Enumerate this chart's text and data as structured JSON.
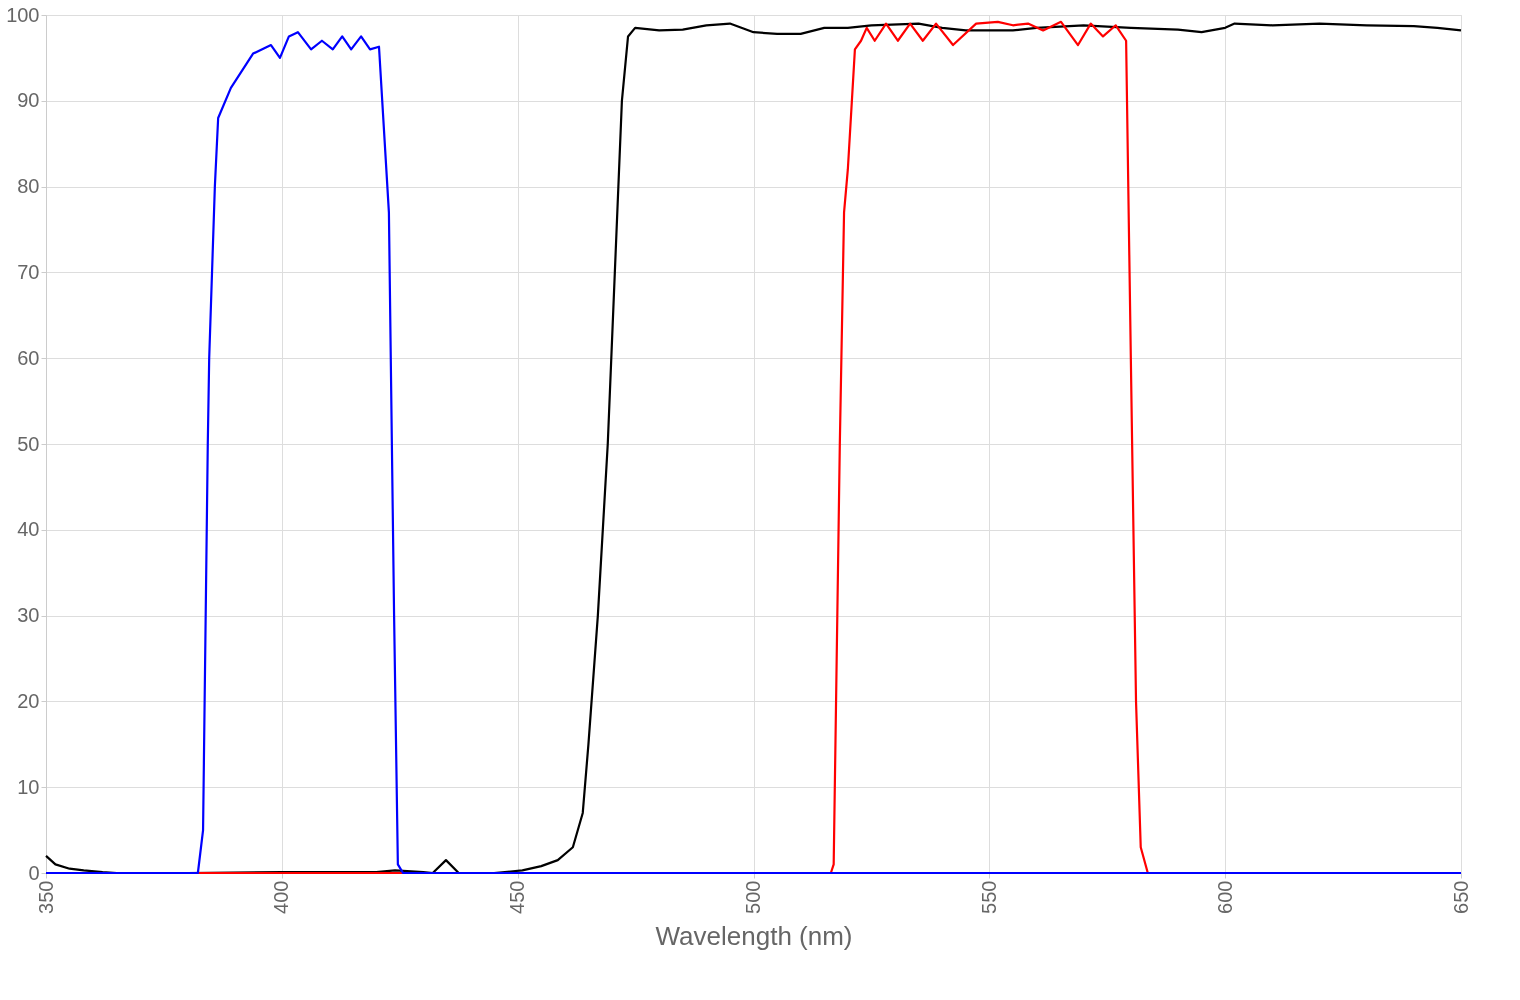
{
  "chart_data": {
    "type": "line",
    "xlabel": "Wavelength (nm)",
    "xlim": [
      350,
      650
    ],
    "xticks": [
      350,
      400,
      450,
      500,
      550,
      600,
      650
    ],
    "ylim": [
      0,
      100
    ],
    "yticks": [
      0,
      10,
      20,
      30,
      40,
      50,
      60,
      70,
      80,
      90,
      100
    ],
    "grid": true,
    "legend": false,
    "marker": "none",
    "line_style": "solid",
    "series": [
      {
        "color": "#000000",
        "x": [
          350,
          352,
          355,
          358,
          362,
          365,
          380,
          400,
          420,
          424,
          430,
          432,
          434.8,
          437.5,
          445,
          451,
          455,
          458.5,
          461.7,
          463.8,
          465,
          467,
          469.1,
          470.6,
          472.1,
          473.4,
          474.9,
          480,
          485,
          490,
          495,
          500,
          505,
          510,
          515,
          520,
          525,
          535,
          540,
          545,
          555,
          560,
          570,
          580,
          590,
          595,
          600,
          602,
          610,
          620,
          630,
          640,
          645,
          650
        ],
        "values": [
          2,
          1,
          0.5,
          0.3,
          0.1,
          0,
          0,
          0.1,
          0.1,
          0.3,
          0.1,
          0,
          1.5,
          0,
          0,
          0.3,
          0.8,
          1.5,
          3,
          7,
          15,
          30,
          50,
          70,
          90,
          97.5,
          98.5,
          98.2,
          98.3,
          98.8,
          99,
          98,
          97.8,
          97.8,
          98.5,
          98.5,
          98.8,
          99,
          98.5,
          98.2,
          98.2,
          98.5,
          98.8,
          98.5,
          98.3,
          98,
          98.5,
          99,
          98.8,
          99,
          98.8,
          98.7,
          98.5,
          98.2
        ]
      },
      {
        "color": "#ff0000",
        "x": [
          350,
          516.4,
          517,
          518.3,
          519.2,
          520,
          521.5,
          522.8,
          524,
          525.7,
          528.1,
          530.6,
          533.2,
          535.9,
          538.7,
          542.3,
          547.2,
          551.8,
          555,
          558.2,
          561.4,
          565.2,
          568.8,
          571.5,
          574.1,
          576.8,
          579,
          580,
          581.1,
          582.1,
          583.6,
          650
        ],
        "values": [
          0,
          0,
          1,
          50,
          77,
          82,
          96,
          97,
          98.5,
          97,
          99,
          97,
          99,
          97,
          99,
          96.5,
          99,
          99.2,
          98.8,
          99,
          98.2,
          99.2,
          96.5,
          99,
          97.5,
          98.8,
          97,
          60,
          20,
          3,
          0,
          0
        ]
      },
      {
        "color": "#0000ff",
        "x": [
          350,
          382.2,
          383.3,
          384.3,
          384.6,
          385.8,
          386.5,
          389.2,
          393.9,
          397.7,
          399.6,
          401.5,
          403.4,
          406.2,
          408.5,
          410.8,
          412.8,
          414.7,
          416.8,
          418.7,
          420.6,
          422.7,
          423.8,
          424.6,
          425.7,
          650
        ],
        "values": [
          0,
          0,
          5,
          50,
          60,
          80,
          88,
          91.5,
          95.5,
          96.5,
          95,
          97.5,
          98,
          96,
          97,
          96,
          97.5,
          96,
          97.5,
          96,
          96.3,
          77,
          30,
          1,
          0,
          0
        ]
      }
    ]
  }
}
